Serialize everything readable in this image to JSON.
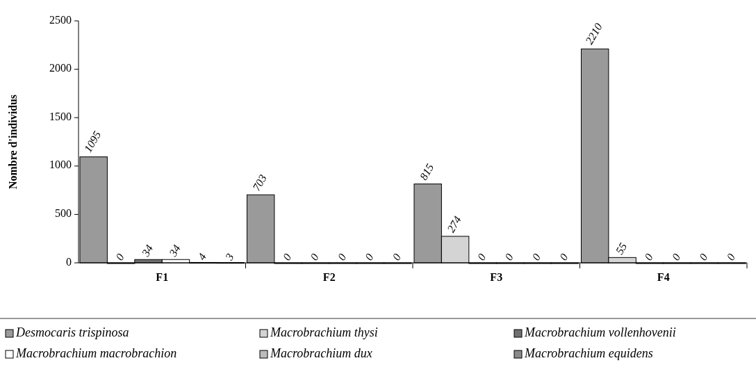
{
  "chart_data": {
    "type": "bar",
    "ylabel": "Nombre d'individus",
    "categories": [
      "F1",
      "F2",
      "F3",
      "F4"
    ],
    "series": [
      {
        "name": "Desmocaris trispinosa",
        "color": "#9a9a9a",
        "values": [
          1095,
          703,
          815,
          2210
        ]
      },
      {
        "name": "Macrobrachium thysi",
        "color": "#d4d4d4",
        "values": [
          0,
          0,
          274,
          55
        ]
      },
      {
        "name": "Macrobrachium vollenhovenii",
        "color": "#707070",
        "values": [
          34,
          0,
          0,
          0
        ]
      },
      {
        "name": "Macrobrachium macrobrachion",
        "color": "#ffffff",
        "values": [
          34,
          0,
          0,
          0
        ]
      },
      {
        "name": "Macrobrachium dux",
        "color": "#bcbcbc",
        "values": [
          4,
          0,
          0,
          0
        ]
      },
      {
        "name": "Macrobrachium equidens",
        "color": "#8a8a8a",
        "values": [
          3,
          0,
          0,
          0
        ]
      }
    ],
    "ylim": [
      0,
      2500
    ],
    "yticks": [
      0,
      500,
      1000,
      1500,
      2000,
      2500
    ],
    "data_labels": true,
    "legend": "bottom",
    "grid": false
  }
}
